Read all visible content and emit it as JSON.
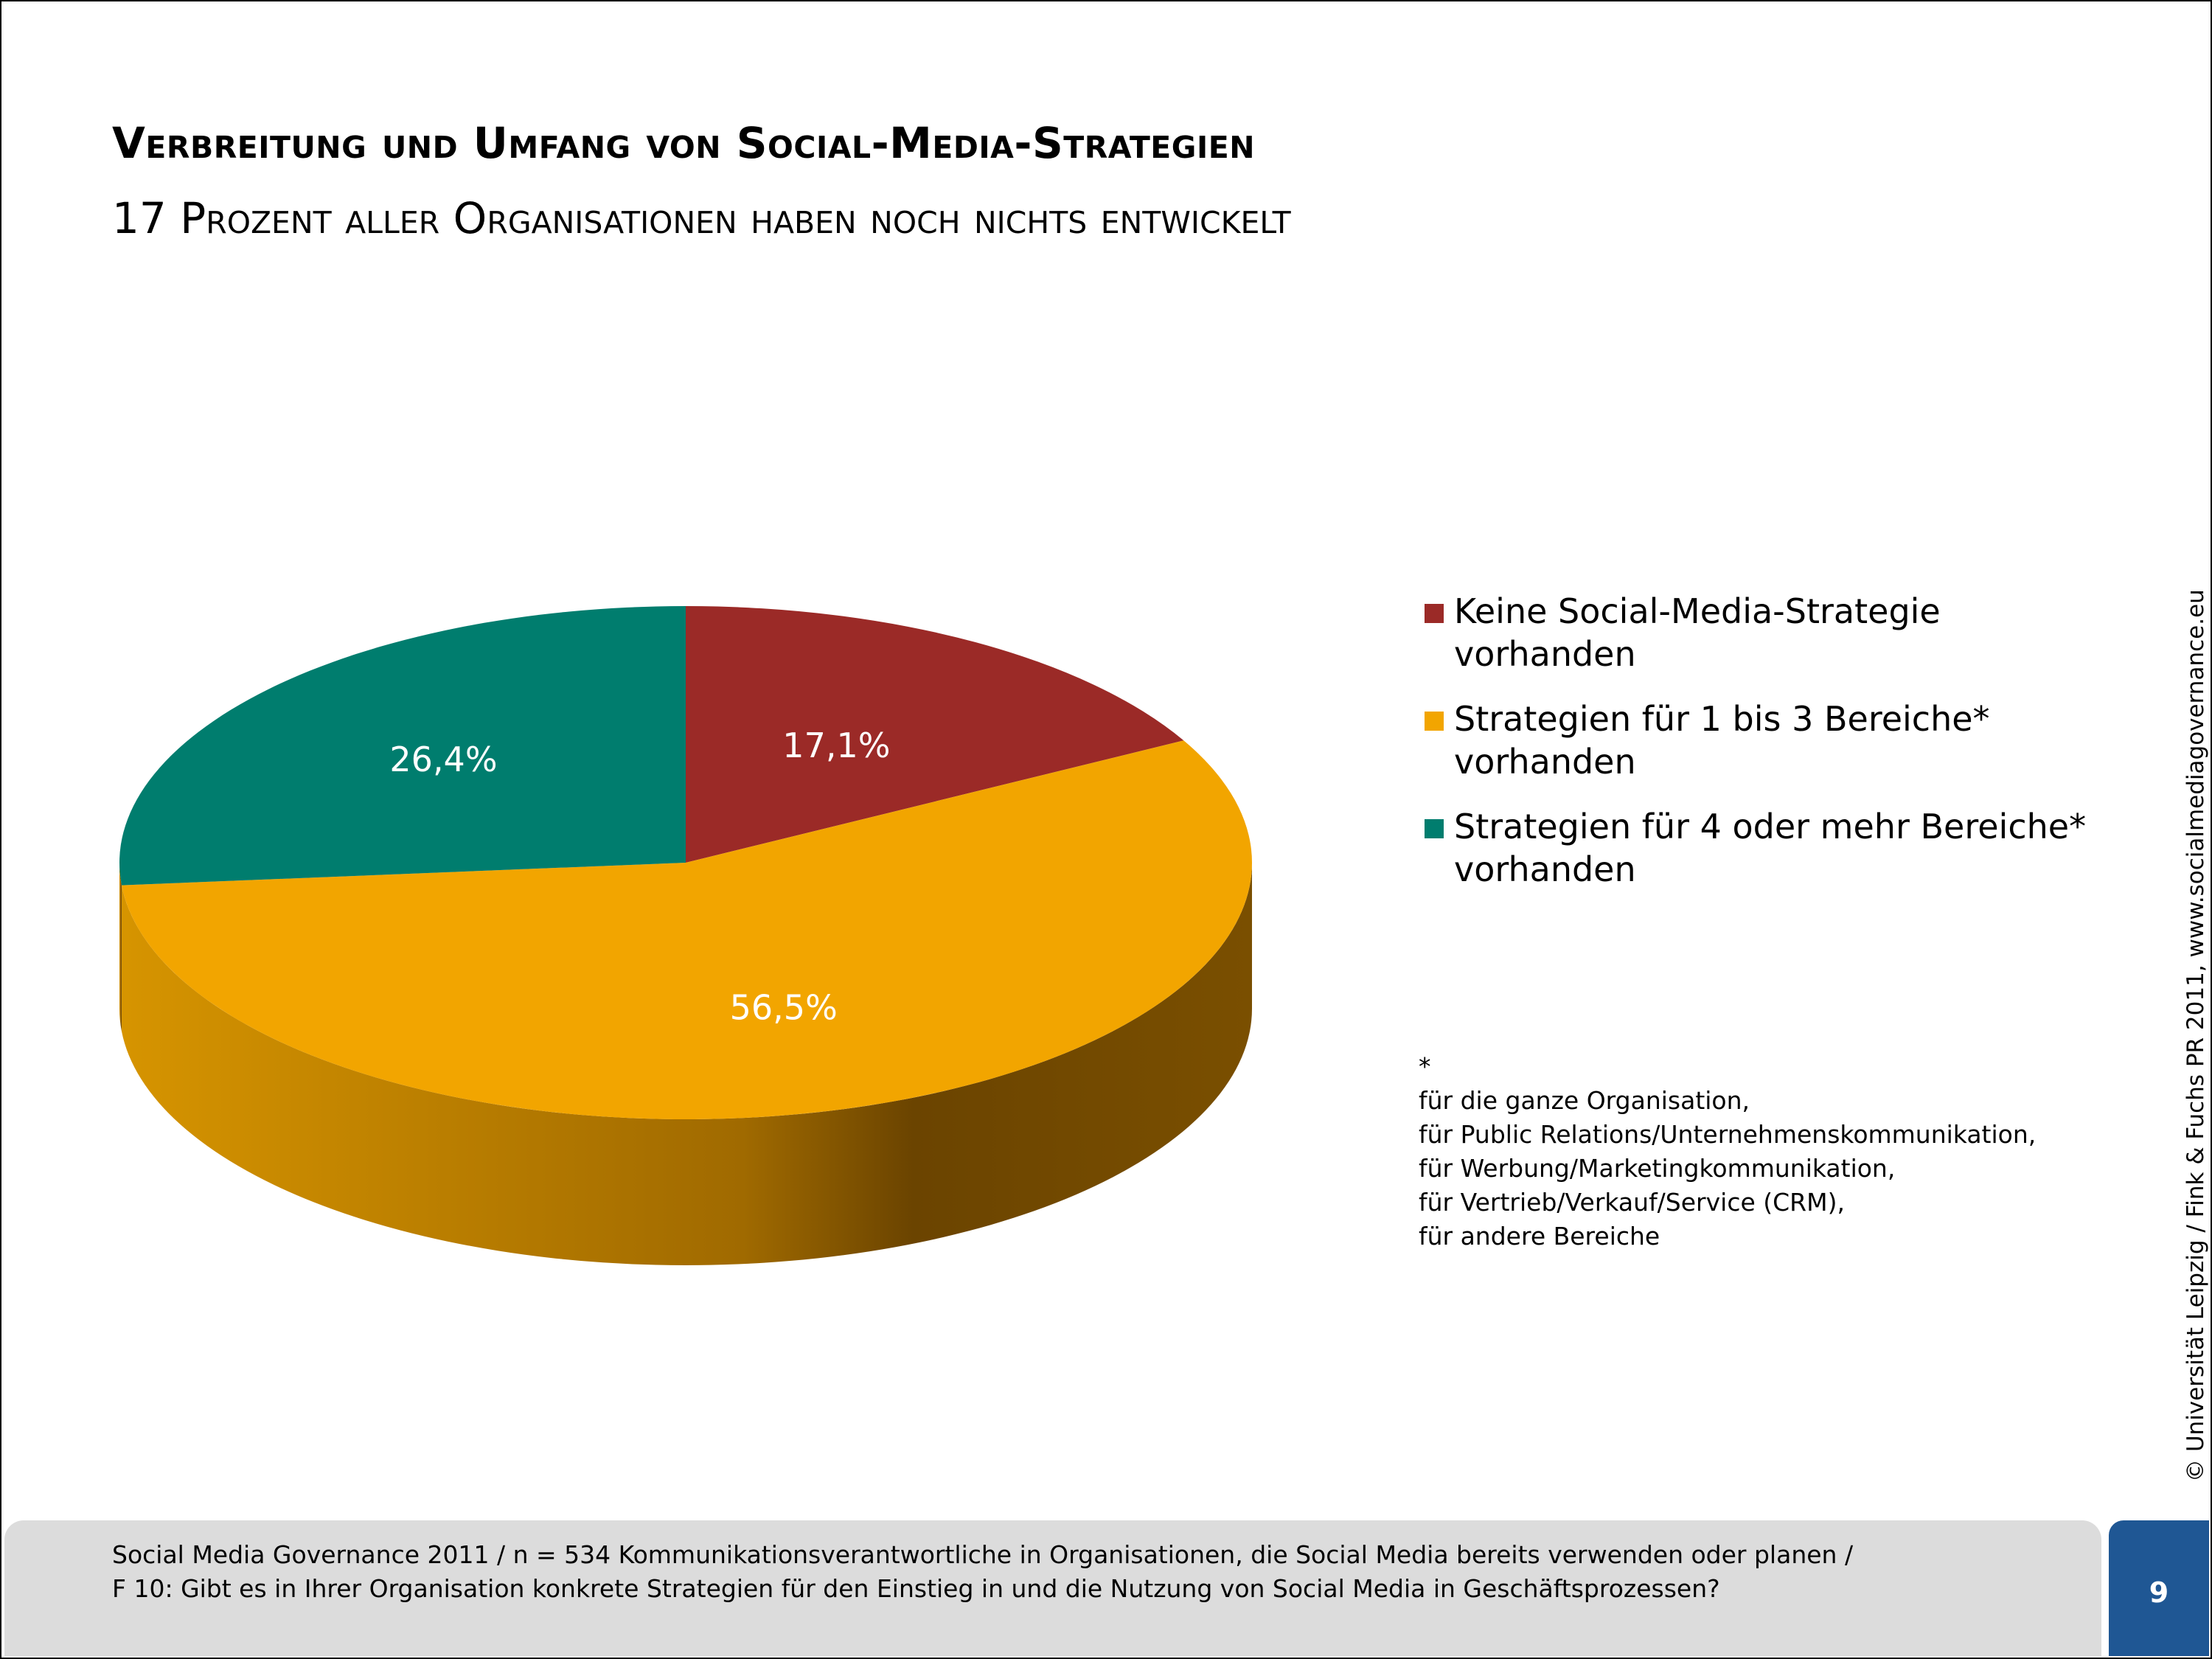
{
  "header": {
    "title": "Verbreitung und Umfang von Social-Media-Strategien",
    "subtitle": "17 Prozent aller Organisationen haben noch nichts entwickelt"
  },
  "chart_data": {
    "type": "pie",
    "style": "3d",
    "slices": [
      {
        "label": "Keine Social-Media-Strategie vorhanden",
        "value": 17.1,
        "value_label": "17,1%",
        "color": "#9b2a27"
      },
      {
        "label": "Strategien für 1 bis 3 Bereiche* vorhanden",
        "value": 56.5,
        "value_label": "56,5%",
        "color": "#f2a500"
      },
      {
        "label": "Strategien für 4 oder mehr Bereiche* vorhanden",
        "value": 26.4,
        "value_label": "26,4%",
        "color": "#007d6e"
      }
    ],
    "legend_position": "right"
  },
  "legend": [
    {
      "line1": "Keine Social-Media-Strategie vorhanden",
      "line2": "",
      "color": "#9b2a27"
    },
    {
      "line1": "Strategien für 1 bis 3 Bereiche*",
      "line2": "vorhanden",
      "color": "#f2a500"
    },
    {
      "line1": "Strategien für 4 oder mehr Bereiche*",
      "line2": "vorhanden",
      "color": "#007d6e"
    }
  ],
  "footnote": {
    "marker": "*",
    "lines": [
      "für die ganze Organisation,",
      "für Public Relations/Unternehmenskommunikation,",
      "für Werbung/Marketingkommunikation,",
      "für Vertrieb/Verkauf/Service (CRM),",
      "für andere Bereiche"
    ]
  },
  "side_credit": "© Universität Leipzig / Fink & Fuchs PR 2011, www.socialmediagovernance.eu",
  "footer": {
    "line1": "Social Media Governance 2011 / n = 534 Kommunikationsverantwortliche in Organisationen, die Social Media bereits verwenden oder planen /",
    "line2": "F 10: Gibt es in Ihrer Organisation konkrete Strategien für den Einstieg in und die Nutzung von Social Media in Geschäftsprozessen?"
  },
  "page_number": "9",
  "colors": {
    "footer_bg": "#dcdcdc",
    "page_box": "#1f5794",
    "side_dark": "#6b4400",
    "side_light": "#d69400"
  }
}
